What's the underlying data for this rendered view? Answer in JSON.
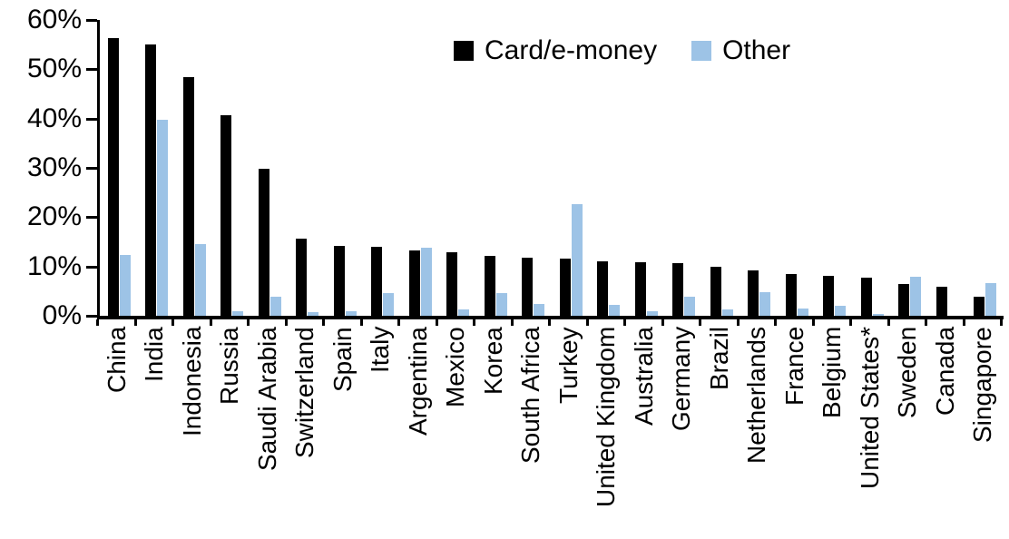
{
  "chart_data": {
    "type": "bar",
    "title": "",
    "xlabel": "",
    "ylabel": "",
    "ylim": [
      0,
      60
    ],
    "ytick_labels": [
      "0%",
      "10%",
      "20%",
      "30%",
      "40%",
      "50%",
      "60%"
    ],
    "ytick_values": [
      0,
      10,
      20,
      30,
      40,
      50,
      60
    ],
    "grid": false,
    "legend_position": "top-center",
    "categories": [
      "China",
      "India",
      "Indonesia",
      "Russia",
      "Saudi Arabia",
      "Switzerland",
      "Spain",
      "Italy",
      "Argentina",
      "Mexico",
      "Korea",
      "South Africa",
      "Turkey",
      "United Kingdom",
      "Australia",
      "Germany",
      "Brazil",
      "Netherlands",
      "France",
      "Belgium",
      "United States*",
      "Sweden",
      "Canada",
      "Singapore"
    ],
    "series": [
      {
        "name": "Card/e-money",
        "color": "#000000",
        "values": [
          56.3,
          55.1,
          48.4,
          40.6,
          29.9,
          15.6,
          14.1,
          14.0,
          13.3,
          12.8,
          12.2,
          11.8,
          11.6,
          11.0,
          10.8,
          10.6,
          9.9,
          9.2,
          8.5,
          8.1,
          7.8,
          6.4,
          5.9,
          3.8
        ]
      },
      {
        "name": "Other",
        "color": "#9DC3E6",
        "values": [
          12.4,
          39.7,
          14.5,
          1.0,
          3.9,
          0.8,
          0.9,
          4.6,
          13.8,
          1.3,
          4.6,
          2.4,
          22.6,
          2.3,
          1.0,
          3.9,
          1.2,
          4.8,
          1.5,
          2.0,
          0.3,
          8.0,
          0,
          6.6
        ]
      }
    ]
  }
}
